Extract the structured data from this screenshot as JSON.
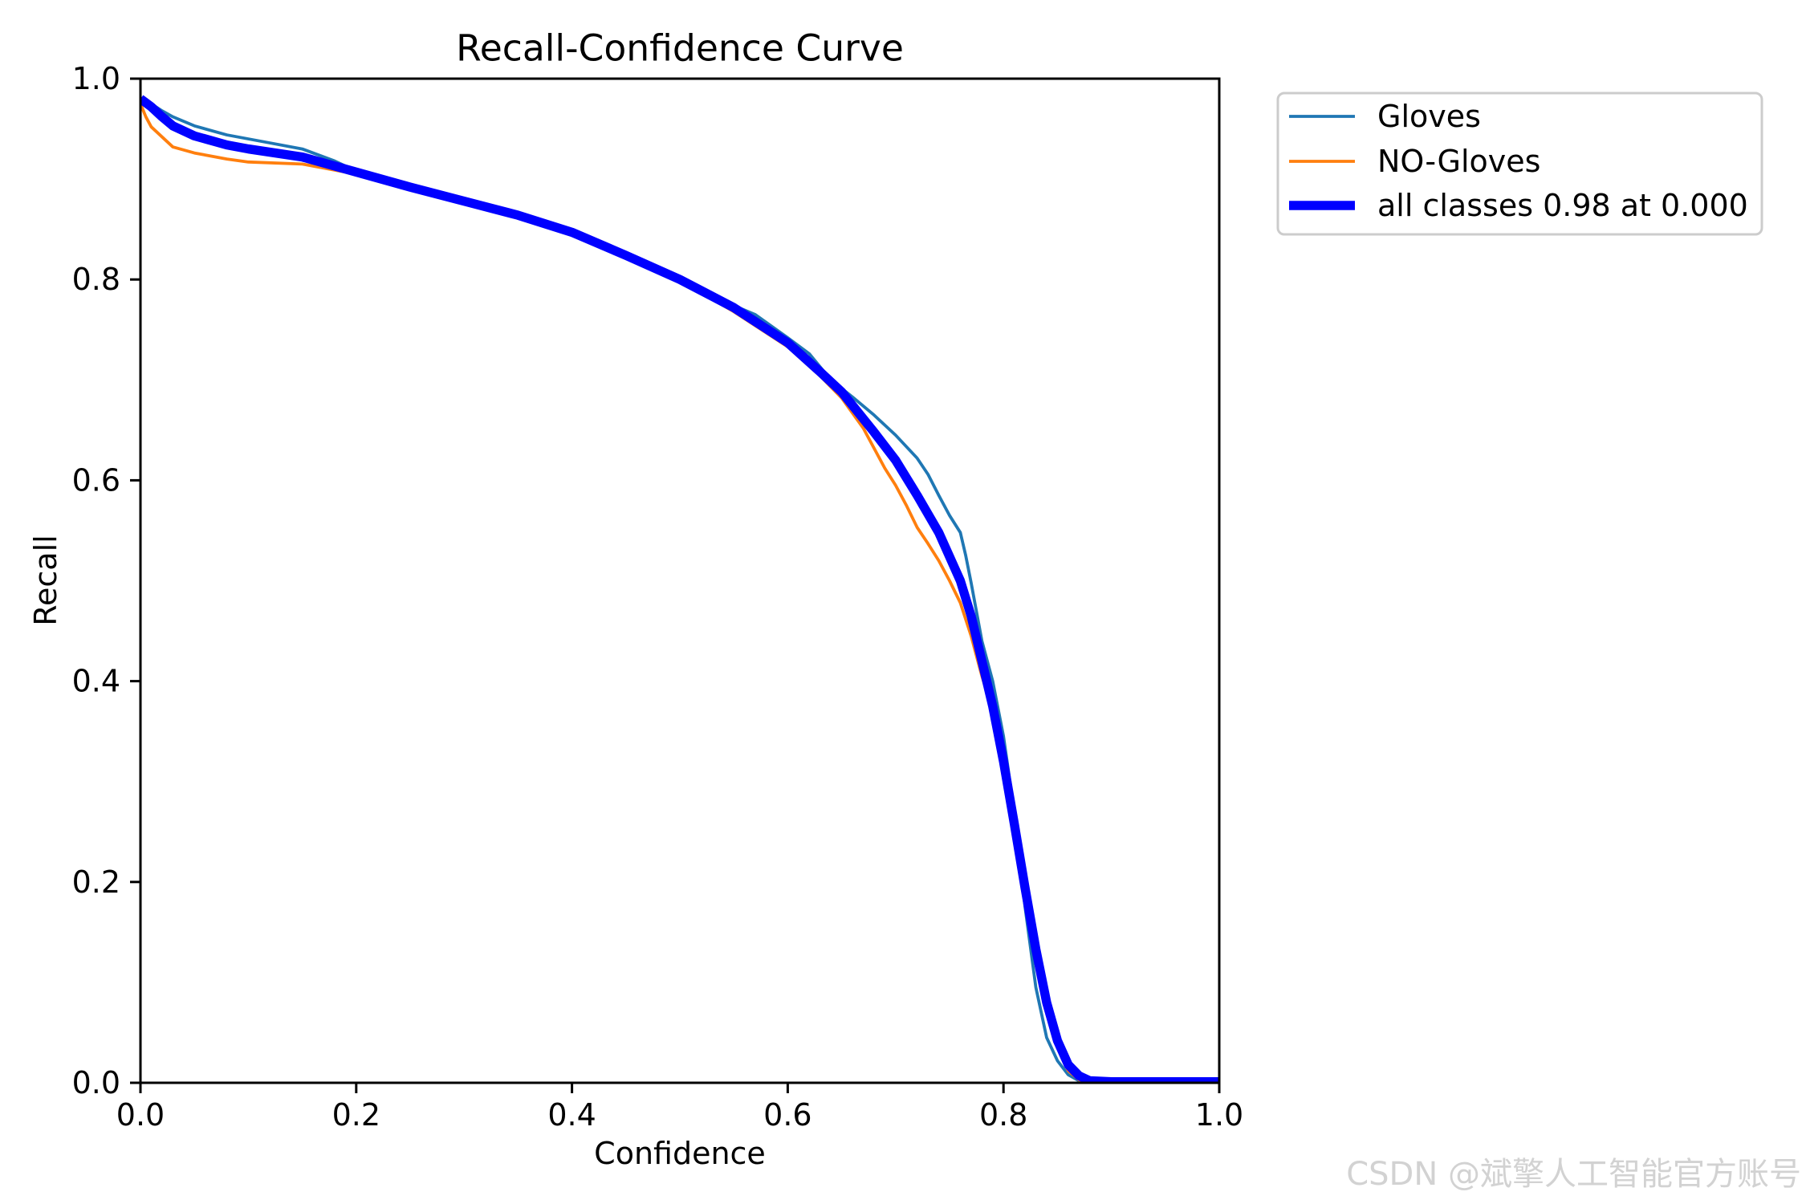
{
  "chart_data": {
    "type": "line",
    "title": "Recall-Confidence Curve",
    "xlabel": "Confidence",
    "ylabel": "Recall",
    "xlim": [
      0,
      1
    ],
    "ylim": [
      0,
      1
    ],
    "xticks": [
      0,
      0.2,
      0.4,
      0.6,
      0.8,
      1.0
    ],
    "xtick_labels": [
      "0.0",
      "0.2",
      "0.4",
      "0.6",
      "0.8",
      "1.0"
    ],
    "yticks": [
      0,
      0.2,
      0.4,
      0.6,
      0.8,
      1.0
    ],
    "ytick_labels": [
      "0.0",
      "0.2",
      "0.4",
      "0.6",
      "0.8",
      "1.0"
    ],
    "grid": false,
    "legend_placement": "outside-upper-right",
    "series": [
      {
        "name": "Gloves",
        "color": "#1f77b4",
        "x": [
          0,
          0.01,
          0.02,
          0.03,
          0.05,
          0.08,
          0.1,
          0.12,
          0.15,
          0.18,
          0.2,
          0.25,
          0.28,
          0.3,
          0.35,
          0.4,
          0.45,
          0.5,
          0.55,
          0.57,
          0.6,
          0.62,
          0.64,
          0.66,
          0.68,
          0.7,
          0.72,
          0.73,
          0.74,
          0.75,
          0.76,
          0.765,
          0.77,
          0.78,
          0.79,
          0.8,
          0.81,
          0.82,
          0.83,
          0.84,
          0.85,
          0.86,
          0.87,
          0.88,
          1.0
        ],
        "y": [
          0.98,
          0.975,
          0.968,
          0.962,
          0.953,
          0.944,
          0.94,
          0.936,
          0.93,
          0.918,
          0.908,
          0.893,
          0.886,
          0.878,
          0.865,
          0.847,
          0.824,
          0.8,
          0.774,
          0.765,
          0.742,
          0.726,
          0.7,
          0.683,
          0.665,
          0.645,
          0.622,
          0.606,
          0.585,
          0.565,
          0.548,
          0.525,
          0.498,
          0.44,
          0.4,
          0.345,
          0.27,
          0.175,
          0.095,
          0.045,
          0.022,
          0.008,
          0.002,
          0,
          0
        ]
      },
      {
        "name": "NO-Gloves",
        "color": "#ff7f0e",
        "x": [
          0,
          0.005,
          0.01,
          0.02,
          0.03,
          0.05,
          0.08,
          0.1,
          0.15,
          0.2,
          0.25,
          0.3,
          0.35,
          0.4,
          0.45,
          0.5,
          0.55,
          0.6,
          0.63,
          0.65,
          0.67,
          0.69,
          0.7,
          0.71,
          0.72,
          0.73,
          0.74,
          0.75,
          0.76,
          0.77,
          0.78,
          0.79,
          0.8,
          0.81,
          0.82,
          0.83,
          0.84,
          0.85,
          0.86,
          0.87,
          0.88,
          1.0
        ],
        "y": [
          0.975,
          0.962,
          0.952,
          0.942,
          0.932,
          0.926,
          0.92,
          0.917,
          0.915,
          0.905,
          0.89,
          0.876,
          0.864,
          0.846,
          0.823,
          0.799,
          0.768,
          0.733,
          0.704,
          0.682,
          0.652,
          0.612,
          0.595,
          0.575,
          0.553,
          0.537,
          0.52,
          0.5,
          0.478,
          0.445,
          0.405,
          0.37,
          0.318,
          0.255,
          0.192,
          0.13,
          0.075,
          0.035,
          0.012,
          0.003,
          0,
          0
        ]
      },
      {
        "name": "all classes 0.98 at 0.000",
        "color": "#0000ff",
        "x": [
          0,
          0.01,
          0.02,
          0.03,
          0.05,
          0.08,
          0.1,
          0.15,
          0.2,
          0.25,
          0.3,
          0.35,
          0.4,
          0.45,
          0.5,
          0.55,
          0.6,
          0.63,
          0.65,
          0.68,
          0.7,
          0.72,
          0.74,
          0.76,
          0.77,
          0.78,
          0.79,
          0.8,
          0.81,
          0.82,
          0.83,
          0.84,
          0.85,
          0.86,
          0.87,
          0.88,
          0.9,
          1.0
        ],
        "y": [
          0.98,
          0.972,
          0.962,
          0.953,
          0.943,
          0.934,
          0.93,
          0.922,
          0.907,
          0.892,
          0.878,
          0.864,
          0.847,
          0.824,
          0.8,
          0.772,
          0.737,
          0.708,
          0.688,
          0.648,
          0.62,
          0.585,
          0.548,
          0.5,
          0.465,
          0.42,
          0.375,
          0.32,
          0.258,
          0.194,
          0.133,
          0.08,
          0.042,
          0.018,
          0.007,
          0.002,
          0.001,
          0.001
        ]
      }
    ]
  },
  "watermark": "CSDN @斌擎人工智能官方账号"
}
